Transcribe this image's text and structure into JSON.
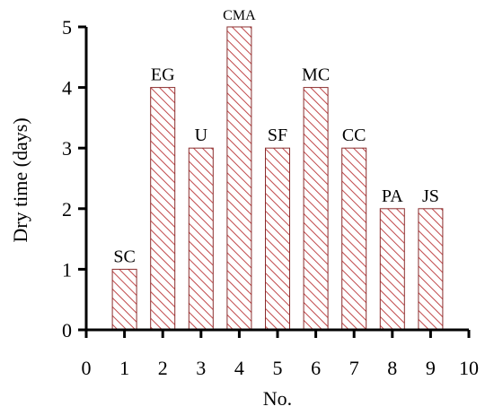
{
  "chart_data": {
    "type": "bar",
    "xlabel": "No.",
    "ylabel": "Dry time (days)",
    "xlim": [
      0,
      10
    ],
    "ylim": [
      0,
      5
    ],
    "x_ticks": [
      0,
      1,
      2,
      3,
      4,
      5,
      6,
      7,
      8,
      9,
      10
    ],
    "y_ticks": [
      0,
      1,
      2,
      3,
      4,
      5
    ],
    "grid": false,
    "bar_fill": "hatched",
    "hatch_color": "#c0484a",
    "bar_edge_color": "#8a2e2e",
    "axis_color": "#000000",
    "bars": [
      {
        "x": 1,
        "label": "SC",
        "value": 1
      },
      {
        "x": 2,
        "label": "EG",
        "value": 4
      },
      {
        "x": 3,
        "label": "U",
        "value": 3
      },
      {
        "x": 4,
        "label": "CMA",
        "value": 5
      },
      {
        "x": 5,
        "label": "SF",
        "value": 3
      },
      {
        "x": 6,
        "label": "MC",
        "value": 4
      },
      {
        "x": 7,
        "label": "CC",
        "value": 3
      },
      {
        "x": 8,
        "label": "PA",
        "value": 2
      },
      {
        "x": 9,
        "label": "JS",
        "value": 2
      }
    ]
  }
}
